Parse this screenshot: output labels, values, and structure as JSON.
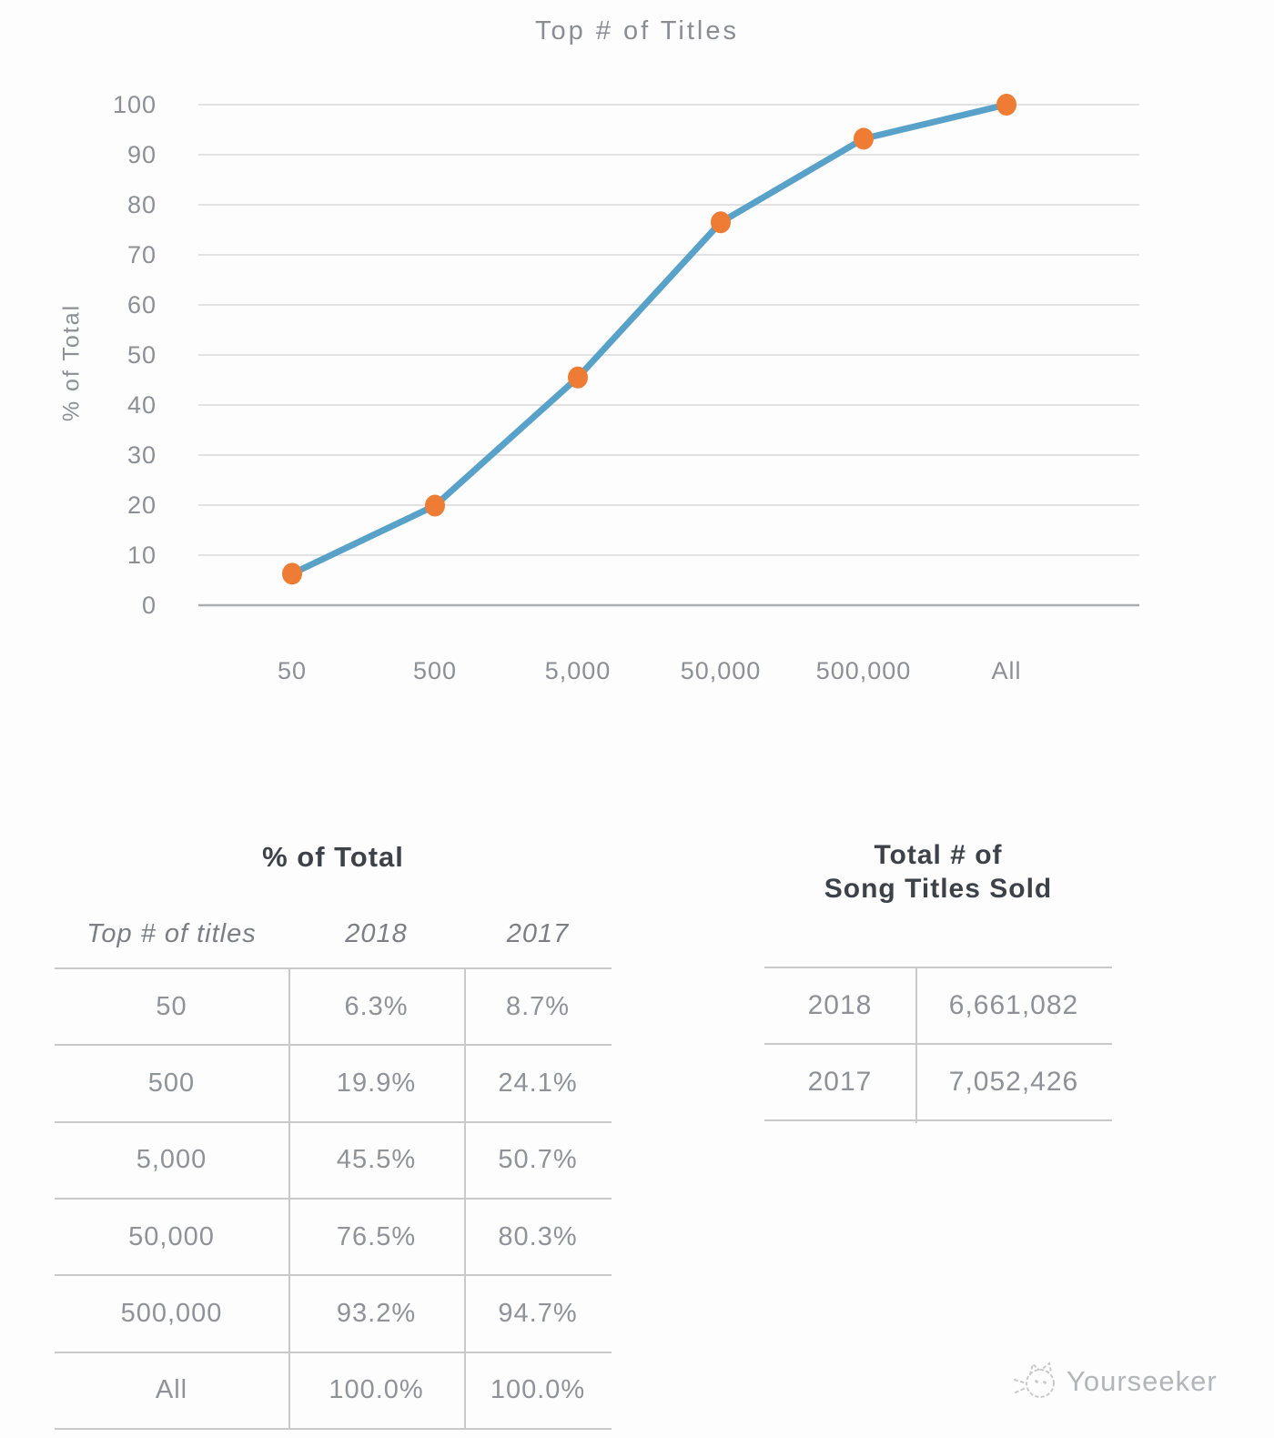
{
  "chart_data": {
    "type": "line",
    "title": "Top # of Titles",
    "categories": [
      "50",
      "500",
      "5,000",
      "50,000",
      "500,000",
      "All"
    ],
    "series": [
      {
        "name": "2018",
        "values": [
          6.3,
          19.9,
          45.5,
          76.5,
          93.2,
          100.0
        ]
      }
    ],
    "xlabel": "",
    "ylabel": "% of Total",
    "ylim": [
      0,
      100
    ],
    "y_ticks": [
      0,
      10,
      20,
      30,
      40,
      50,
      60,
      70,
      80,
      90,
      100
    ],
    "grid": true,
    "legend_position": "none",
    "line_color": "#58a1c8",
    "marker_color": "#ee7c34"
  },
  "tables": {
    "left": {
      "title": "% of Total",
      "columns": [
        "Top # of titles",
        "2018",
        "2017"
      ],
      "rows": [
        [
          "50",
          "6.3%",
          "8.7%"
        ],
        [
          "500",
          "19.9%",
          "24.1%"
        ],
        [
          "5,000",
          "45.5%",
          "50.7%"
        ],
        [
          "50,000",
          "76.5%",
          "80.3%"
        ],
        [
          "500,000",
          "93.2%",
          "94.7%"
        ],
        [
          "All",
          "100.0%",
          "100.0%"
        ]
      ]
    },
    "right": {
      "title_line1": "Total # of",
      "title_line2": "Song Titles Sold",
      "rows": [
        [
          "2018",
          "6,661,082"
        ],
        [
          "2017",
          "7,052,426"
        ]
      ]
    }
  },
  "watermark": {
    "label": "Yourseeker",
    "icon": "cat-doodle-icon",
    "color": "#b3b5b9"
  }
}
